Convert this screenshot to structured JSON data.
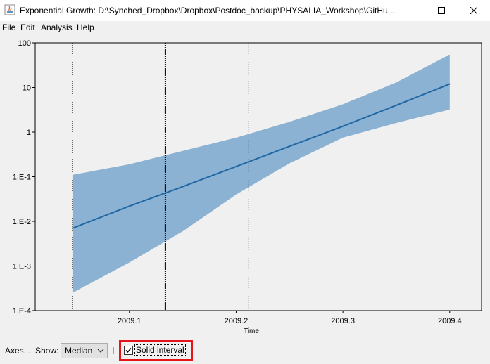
{
  "window": {
    "title": "Exponential Growth: D:\\Synched_Dropbox\\Dropbox\\Postdoc_backup\\PHYSALIA_Workshop\\GitHu...",
    "controls": {
      "minimize_icon": "minimize-icon",
      "maximize_icon": "maximize-icon",
      "close_icon": "close-icon"
    }
  },
  "menu": {
    "items": [
      {
        "label": "File"
      },
      {
        "label": "Edit"
      },
      {
        "label": "Analysis"
      },
      {
        "label": "Help"
      }
    ]
  },
  "controls": {
    "axes_label": "Axes...",
    "show_label": "Show:",
    "show_value": "Median",
    "solid_interval_label": "Solid interval",
    "solid_interval_checked": true
  },
  "chart_data": {
    "type": "area",
    "y_scale": "log",
    "xlabel": "Time",
    "ylabel": "",
    "xlim": [
      2009.0118,
      2009.4298
    ],
    "ylim": [
      0.0001,
      100
    ],
    "x_ticks": [
      "2009.1",
      "2009.2",
      "2009.3",
      "2009.4"
    ],
    "x_tick_values": [
      2009.1,
      2009.2,
      2009.3,
      2009.4
    ],
    "y_ticks": [
      "1.E-4",
      "1.E-3",
      "1.E-2",
      "1.E-1",
      "1",
      "10",
      "100"
    ],
    "y_tick_values": [
      0.0001,
      0.001,
      0.01,
      0.1,
      1,
      10,
      100
    ],
    "vertical_lines": [
      {
        "x": 2009.0467,
        "style": "dotted"
      },
      {
        "x": 2009.1337,
        "style": "dotted-bold"
      },
      {
        "x": 2009.2118,
        "style": "dotted"
      }
    ],
    "median": {
      "x": [
        2009.0467,
        2009.1,
        2009.15,
        2009.2,
        2009.25,
        2009.3,
        2009.35,
        2009.4
      ],
      "y": [
        0.007,
        0.022,
        0.06,
        0.17,
        0.48,
        1.35,
        4.0,
        12.0
      ]
    },
    "interval": {
      "x": [
        2009.0467,
        2009.1,
        2009.15,
        2009.2,
        2009.25,
        2009.3,
        2009.35,
        2009.4
      ],
      "upper": [
        0.11,
        0.19,
        0.38,
        0.75,
        1.7,
        4.2,
        13.0,
        55.0
      ],
      "lower": [
        0.00025,
        0.0012,
        0.006,
        0.04,
        0.2,
        0.75,
        1.6,
        3.2
      ]
    },
    "colors": {
      "median": "#2166a5",
      "interval": "#8bb2d2",
      "axes": "#000000"
    }
  }
}
